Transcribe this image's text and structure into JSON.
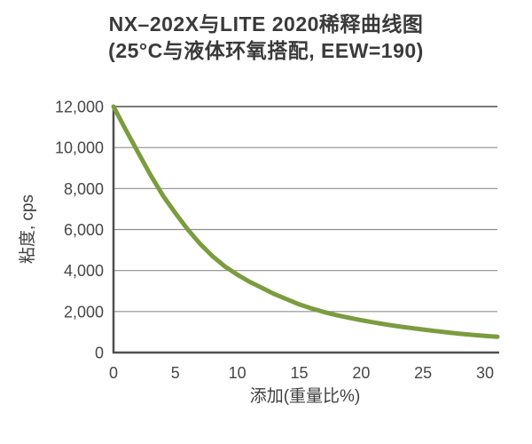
{
  "page": {
    "background": "#ffffff"
  },
  "chart_data": {
    "type": "line",
    "title": "NX–202X与LITE 2020稀释曲线图",
    "subtitle": "(25°C与液体环氧搭配, EEW=190)",
    "xlabel": "添加(重量比%)",
    "ylabel": "粘度, cps",
    "xlim": [
      0,
      31
    ],
    "ylim": [
      0,
      12000
    ],
    "x_ticks": [
      0,
      5,
      10,
      15,
      20,
      25,
      30
    ],
    "x_tick_labels": [
      "0",
      "5",
      "10",
      "15",
      "20",
      "25",
      "30"
    ],
    "y_ticks": [
      0,
      2000,
      4000,
      6000,
      8000,
      10000,
      12000
    ],
    "y_tick_labels": [
      "0",
      "2,000",
      "4,000",
      "6,000",
      "8,000",
      "10,000",
      "12,000"
    ],
    "grid": "horizontal",
    "legend_position": "none",
    "colors": {
      "curve": "#7b9c3f",
      "gridline": "#8f8f8f",
      "gridline_top": "#7a7a7a",
      "axis": "#4f4f4f",
      "text": "#3a3a3a"
    },
    "series": [
      {
        "name": "NX-202X稀释曲线",
        "color": "#7b9c3f",
        "x": [
          0,
          1,
          2,
          3,
          4,
          5,
          6,
          7,
          8,
          9,
          10,
          11,
          12,
          13,
          14,
          15,
          16,
          17,
          18,
          19,
          20,
          21,
          22,
          23,
          24,
          25,
          26,
          27,
          28,
          29,
          30,
          31
        ],
        "y": [
          12000,
          10850,
          9750,
          8650,
          7650,
          6800,
          6000,
          5300,
          4700,
          4200,
          3800,
          3450,
          3150,
          2850,
          2600,
          2350,
          2150,
          1975,
          1825,
          1700,
          1575,
          1470,
          1370,
          1280,
          1200,
          1120,
          1050,
          980,
          915,
          860,
          810,
          770
        ]
      }
    ]
  }
}
